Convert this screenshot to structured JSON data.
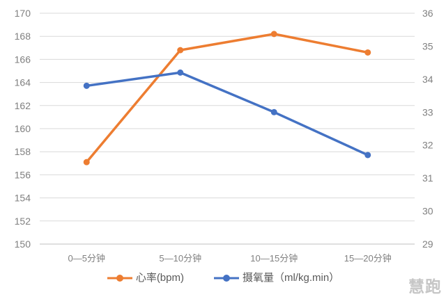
{
  "chart_data": {
    "type": "line",
    "title": "",
    "categories": [
      "0—5分钟",
      "5—10分钟",
      "10—15分钟",
      "15—20分钟"
    ],
    "series": [
      {
        "name": "心率(bpm)",
        "axis": "left",
        "color": "#ED7D31",
        "values": [
          157.1,
          166.8,
          168.2,
          166.6
        ]
      },
      {
        "name": "摄氧量（ml/kg.min）",
        "axis": "right",
        "color": "#4472C4",
        "values": [
          33.8,
          34.2,
          33.0,
          31.7
        ]
      }
    ],
    "left_axis": {
      "min": 150,
      "max": 170,
      "step": 2
    },
    "right_axis": {
      "min": 29,
      "max": 36,
      "step": 1
    },
    "grid": true,
    "gridline_color": "#d9d9d9",
    "baseline_color": "#bfbfbf",
    "tick_label_color": "#808080",
    "legend_position": "bottom"
  },
  "watermark": "慧跑"
}
